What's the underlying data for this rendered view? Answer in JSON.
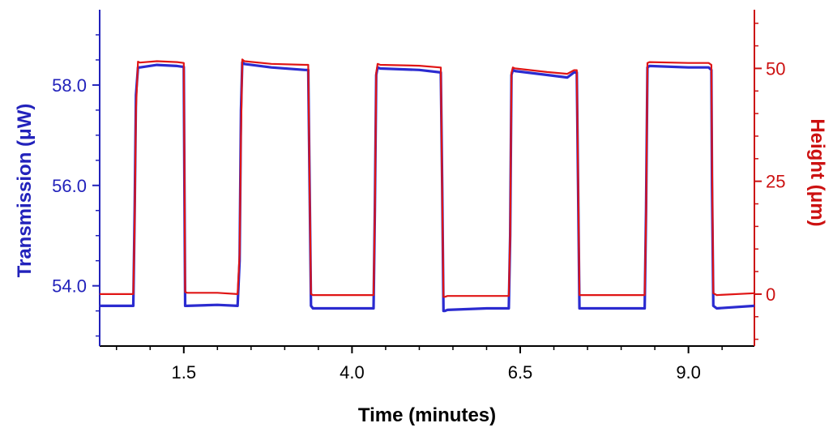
{
  "chart_data": {
    "type": "line",
    "title": "",
    "xlabel": "Time (minutes)",
    "ylabel_left": "Transmission (μW)",
    "ylabel_right": "Height (μm)",
    "xlim": [
      0.25,
      9.98
    ],
    "ylim_left": [
      52.8,
      59.5
    ],
    "ylim_right": [
      -11.5,
      63
    ],
    "x_ticks": [
      1.5,
      4.0,
      6.5,
      9.0
    ],
    "x_tick_labels": [
      "1.5",
      "4.0",
      "6.5",
      "9.0"
    ],
    "y_left_ticks": [
      54.0,
      56.0,
      58.0
    ],
    "y_left_tick_labels": [
      "54.0",
      "56.0",
      "58.0"
    ],
    "y_right_ticks": [
      0,
      25,
      50
    ],
    "y_right_tick_labels": [
      "0",
      "25",
      "50"
    ],
    "colors": {
      "left_axis": "#2222bb",
      "right_axis": "#cc1111",
      "transmission": "#2b2bd0",
      "height": "#e01515"
    },
    "series": [
      {
        "name": "Transmission",
        "axis": "left",
        "x": [
          0.25,
          0.75,
          0.77,
          0.79,
          0.82,
          0.85,
          1.1,
          1.4,
          1.5,
          1.51,
          1.52,
          1.55,
          2.0,
          2.3,
          2.33,
          2.35,
          2.37,
          2.4,
          2.8,
          3.3,
          3.35,
          3.37,
          3.39,
          3.42,
          4.0,
          4.32,
          4.34,
          4.36,
          4.38,
          4.42,
          5.0,
          5.32,
          5.34,
          5.36,
          5.38,
          5.42,
          6.0,
          6.33,
          6.35,
          6.37,
          6.39,
          6.42,
          6.9,
          7.2,
          7.3,
          7.34,
          7.36,
          7.38,
          7.42,
          8.0,
          8.35,
          8.37,
          8.39,
          8.42,
          9.0,
          9.3,
          9.34,
          9.35,
          9.37,
          9.42,
          9.98
        ],
        "values": [
          53.6,
          53.6,
          55.5,
          57.8,
          58.35,
          58.35,
          58.4,
          58.38,
          58.36,
          56.0,
          53.6,
          53.6,
          53.62,
          53.6,
          54.5,
          57.5,
          58.45,
          58.42,
          58.35,
          58.3,
          58.3,
          56.0,
          53.6,
          53.55,
          53.55,
          53.55,
          55.5,
          58.2,
          58.35,
          58.33,
          58.3,
          58.25,
          56.0,
          53.5,
          53.5,
          53.52,
          53.55,
          53.55,
          55.0,
          58.2,
          58.3,
          58.28,
          58.2,
          58.15,
          58.25,
          58.25,
          56.0,
          53.55,
          53.55,
          53.55,
          53.55,
          55.5,
          58.35,
          58.38,
          58.35,
          58.35,
          58.3,
          56.0,
          53.6,
          53.55,
          53.6
        ]
      },
      {
        "name": "Height",
        "axis": "right",
        "x": [
          0.25,
          0.75,
          0.77,
          0.79,
          0.82,
          0.85,
          1.1,
          1.4,
          1.5,
          1.51,
          1.52,
          1.55,
          2.0,
          2.3,
          2.33,
          2.35,
          2.37,
          2.4,
          2.8,
          3.3,
          3.35,
          3.37,
          3.39,
          3.42,
          4.0,
          4.32,
          4.34,
          4.36,
          4.38,
          4.42,
          5.0,
          5.32,
          5.34,
          5.36,
          5.38,
          5.42,
          6.0,
          6.33,
          6.35,
          6.37,
          6.39,
          6.42,
          6.9,
          7.2,
          7.3,
          7.34,
          7.36,
          7.38,
          7.42,
          8.0,
          8.35,
          8.37,
          8.39,
          8.42,
          9.0,
          9.3,
          9.34,
          9.35,
          9.37,
          9.42,
          9.98
        ],
        "values": [
          0,
          0,
          16,
          41,
          51.5,
          51.3,
          51.6,
          51.4,
          51.2,
          28,
          0.5,
          0.3,
          0.3,
          0,
          9,
          35,
          52,
          51.6,
          51.0,
          50.8,
          50.8,
          24,
          0,
          -0.2,
          -0.2,
          -0.2,
          18,
          49,
          51.0,
          50.8,
          50.6,
          50.2,
          22,
          -0.6,
          -0.6,
          -0.4,
          -0.4,
          -0.4,
          13,
          49,
          50.2,
          50.0,
          49.2,
          48.8,
          49.6,
          49.6,
          26,
          -0.2,
          -0.2,
          -0.2,
          -0.2,
          17,
          51.2,
          51.4,
          51.2,
          51.2,
          50.8,
          30,
          0.2,
          -0.2,
          0.2
        ]
      }
    ]
  }
}
